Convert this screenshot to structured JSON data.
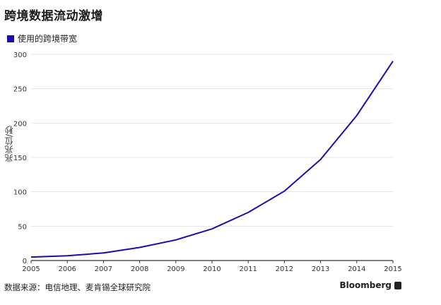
{
  "title": "跨境数据流动激增",
  "legend_label": "使用的跨境带宽",
  "ylabel": "兆兆位/秒",
  "source": "数据来源：电信地理、麦肯锡全球研究院",
  "brand": "Bloomberg",
  "colors": {
    "line": "#1a0dab",
    "grid": "#e3e3e3",
    "axis": "#333333"
  },
  "chart_data": {
    "type": "line",
    "title": "跨境数据流动激增",
    "xlabel": "",
    "ylabel": "兆兆位/秒",
    "x": [
      "2005",
      "2006",
      "2007",
      "2008",
      "2009",
      "2010",
      "2011",
      "2012",
      "2013",
      "2014",
      "2015"
    ],
    "series": [
      {
        "name": "使用的跨境带宽",
        "values": [
          5,
          7,
          11,
          19,
          30,
          46,
          70,
          101,
          147,
          211,
          290
        ]
      }
    ],
    "ylim": [
      0,
      300
    ],
    "yticks": [
      0,
      50,
      100,
      150,
      200,
      250,
      300
    ],
    "grid": true,
    "legend": "top-left"
  }
}
